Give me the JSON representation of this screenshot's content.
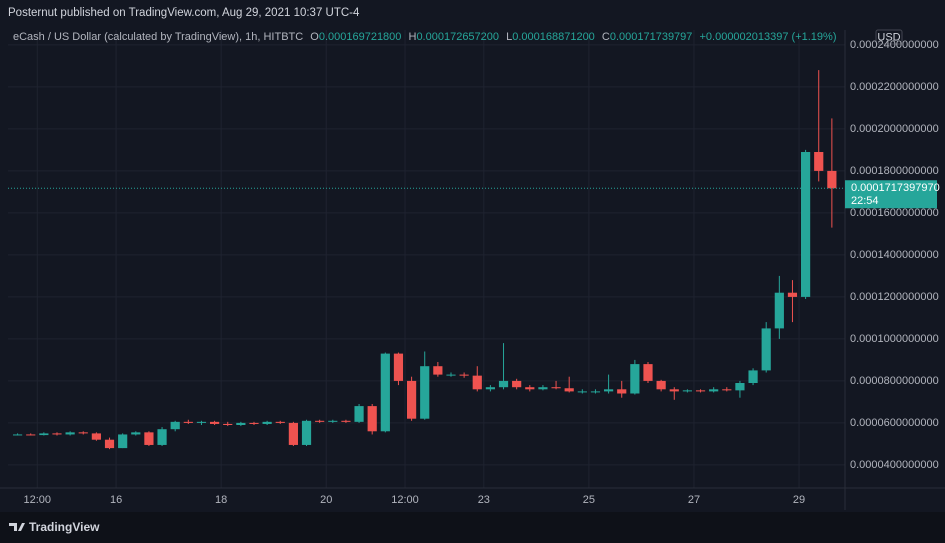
{
  "header": {
    "text": "Posternut published on TradingView.com, Aug 29, 2021 10:37 UTC-4"
  },
  "chart_data": {
    "type": "candlestick",
    "legend": {
      "symbol": "eCash / US Dollar (calculated by TradingView), 1h, HITBTC",
      "o_label": "O",
      "open": "0.000169721800",
      "h_label": "H",
      "high": "0.000172657200",
      "l_label": "L",
      "low": "0.000168871200",
      "c_label": "C",
      "close": "0.000171739797",
      "change": "+0.000002013397 (+1.19%)"
    },
    "currency": "USD",
    "up_color": "#26a69a",
    "down_color": "#ef5350",
    "candles": [
      [
        5.45e-05,
        5.5e-05,
        5.4e-05,
        5.45e-05
      ],
      [
        5.45e-05,
        5.5e-05,
        5.4e-05,
        5.42e-05
      ],
      [
        5.42e-05,
        5.55e-05,
        5.4e-05,
        5.5e-05
      ],
      [
        5.5e-05,
        5.55e-05,
        5.4e-05,
        5.45e-05
      ],
      [
        5.45e-05,
        5.6e-05,
        5.4e-05,
        5.55e-05
      ],
      [
        5.55e-05,
        5.6e-05,
        5.45e-05,
        5.5e-05
      ],
      [
        5.5e-05,
        5.55e-05,
        5.15e-05,
        5.2e-05
      ],
      [
        5.2e-05,
        5.3e-05,
        4.75e-05,
        4.8e-05
      ],
      [
        4.8e-05,
        5.5e-05,
        4.8e-05,
        5.45e-05
      ],
      [
        5.45e-05,
        5.6e-05,
        5.4e-05,
        5.55e-05
      ],
      [
        5.55e-05,
        5.6e-05,
        4.9e-05,
        4.95e-05
      ],
      [
        4.95e-05,
        5.8e-05,
        4.9e-05,
        5.7e-05
      ],
      [
        5.7e-05,
        6.1e-05,
        5.6e-05,
        6.05e-05
      ],
      [
        6.05e-05,
        6.15e-05,
        5.95e-05,
        6e-05
      ],
      [
        6e-05,
        6.1e-05,
        5.9e-05,
        6.05e-05
      ],
      [
        6.05e-05,
        6.1e-05,
        5.9e-05,
        5.95e-05
      ],
      [
        5.95e-05,
        6.05e-05,
        5.85e-05,
        5.9e-05
      ],
      [
        5.9e-05,
        6.05e-05,
        5.85e-05,
        6e-05
      ],
      [
        6e-05,
        6.05e-05,
        5.9e-05,
        5.95e-05
      ],
      [
        5.95e-05,
        6.1e-05,
        5.9e-05,
        6.05e-05
      ],
      [
        6.05e-05,
        6.1e-05,
        5.95e-05,
        6e-05
      ],
      [
        6e-05,
        6.05e-05,
        4.9e-05,
        4.95e-05
      ],
      [
        4.95e-05,
        6.15e-05,
        4.9e-05,
        6.1e-05
      ],
      [
        6.1e-05,
        6.15e-05,
        6e-05,
        6.05e-05
      ],
      [
        6.05e-05,
        6.15e-05,
        6e-05,
        6.1e-05
      ],
      [
        6.1e-05,
        6.15e-05,
        6e-05,
        6.05e-05
      ],
      [
        6.05e-05,
        6.9e-05,
        6e-05,
        6.8e-05
      ],
      [
        6.8e-05,
        6.9e-05,
        5.45e-05,
        5.6e-05
      ],
      [
        5.6e-05,
        9.35e-05,
        5.55e-05,
        9.3e-05
      ],
      [
        9.3e-05,
        9.35e-05,
        7.8e-05,
        8e-05
      ],
      [
        8e-05,
        8.2e-05,
        6.1e-05,
        6.2e-05
      ],
      [
        6.2e-05,
        9.4e-05,
        6.15e-05,
        8.7e-05
      ],
      [
        8.7e-05,
        8.9e-05,
        8.2e-05,
        8.3e-05
      ],
      [
        8.3e-05,
        8.4e-05,
        8.2e-05,
        8.3e-05
      ],
      [
        8.3e-05,
        8.4e-05,
        8.15e-05,
        8.25e-05
      ],
      [
        8.25e-05,
        8.7e-05,
        7.5e-05,
        7.6e-05
      ],
      [
        7.6e-05,
        7.8e-05,
        7.5e-05,
        7.7e-05
      ],
      [
        7.7e-05,
        9.8e-05,
        7.6e-05,
        8e-05
      ],
      [
        8e-05,
        8.1e-05,
        7.6e-05,
        7.7e-05
      ],
      [
        7.7e-05,
        7.8e-05,
        7.5e-05,
        7.6e-05
      ],
      [
        7.6e-05,
        7.8e-05,
        7.55e-05,
        7.7e-05
      ],
      [
        7.7e-05,
        8e-05,
        7.6e-05,
        7.65e-05
      ],
      [
        7.65e-05,
        8.2e-05,
        7.45e-05,
        7.5e-05
      ],
      [
        7.5e-05,
        7.6e-05,
        7.4e-05,
        7.5e-05
      ],
      [
        7.5e-05,
        7.6e-05,
        7.4e-05,
        7.5e-05
      ],
      [
        7.5e-05,
        8.3e-05,
        7.4e-05,
        7.6e-05
      ],
      [
        7.6e-05,
        8e-05,
        7.2e-05,
        7.4e-05
      ],
      [
        7.4e-05,
        9e-05,
        7.35e-05,
        8.8e-05
      ],
      [
        8.8e-05,
        8.9e-05,
        7.9e-05,
        8e-05
      ],
      [
        8e-05,
        8.05e-05,
        7.5e-05,
        7.6e-05
      ],
      [
        7.6e-05,
        7.7e-05,
        7.1e-05,
        7.5e-05
      ],
      [
        7.5e-05,
        7.6e-05,
        7.45e-05,
        7.55e-05
      ],
      [
        7.55e-05,
        7.6e-05,
        7.45e-05,
        7.5e-05
      ],
      [
        7.5e-05,
        7.7e-05,
        7.45e-05,
        7.6e-05
      ],
      [
        7.6e-05,
        7.7e-05,
        7.5e-05,
        7.55e-05
      ],
      [
        7.55e-05,
        8e-05,
        7.2e-05,
        7.9e-05
      ],
      [
        7.9e-05,
        8.6e-05,
        7.8e-05,
        8.5e-05
      ],
      [
        8.5e-05,
        0.000108,
        8.4e-05,
        0.000105
      ],
      [
        0.000105,
        0.00013,
        0.0001,
        0.000122
      ],
      [
        0.000122,
        0.000128,
        0.000108,
        0.00012
      ],
      [
        0.00012,
        0.00019,
        0.000119,
        0.000189
      ],
      [
        0.000189,
        0.000228,
        0.000175,
        0.00018
      ],
      [
        0.00018,
        0.000205,
        0.000153,
        0.000171739797
      ]
    ],
    "ylim": [
      2.9e-05,
      0.0002471
    ],
    "yticks": [
      {
        "value": 4e-05,
        "label": "0.0000400000000"
      },
      {
        "value": 6e-05,
        "label": "0.0000600000000"
      },
      {
        "value": 8e-05,
        "label": "0.0000800000000"
      },
      {
        "value": 0.0001,
        "label": "0.0001000000000"
      },
      {
        "value": 0.00012,
        "label": "0.0001200000000"
      },
      {
        "value": 0.00014,
        "label": "0.0001400000000"
      },
      {
        "value": 0.00016,
        "label": "0.0001600000000"
      },
      {
        "value": 0.00018,
        "label": "0.0001800000000"
      },
      {
        "value": 0.0002,
        "label": "0.0002000000000"
      },
      {
        "value": 0.00022,
        "label": "0.0002200000000"
      },
      {
        "value": 0.00024,
        "label": "0.0002400000000"
      }
    ],
    "xlim": [
      -0.23,
      63.5
    ],
    "xticks": [
      {
        "value": 2,
        "label": "12:00"
      },
      {
        "value": 8,
        "label": "16"
      },
      {
        "value": 16,
        "label": "18"
      },
      {
        "value": 24,
        "label": "20"
      },
      {
        "value": 30,
        "label": "12:00"
      },
      {
        "value": 36,
        "label": "23"
      },
      {
        "value": 44,
        "label": "25"
      },
      {
        "value": 52,
        "label": "27"
      },
      {
        "value": 60,
        "label": "29"
      }
    ],
    "grid": true,
    "last_price": {
      "value": 0.000171739797,
      "label": "0.0001717397970"
    },
    "countdown": "22:54"
  },
  "footer": {
    "brand": "TradingView"
  }
}
